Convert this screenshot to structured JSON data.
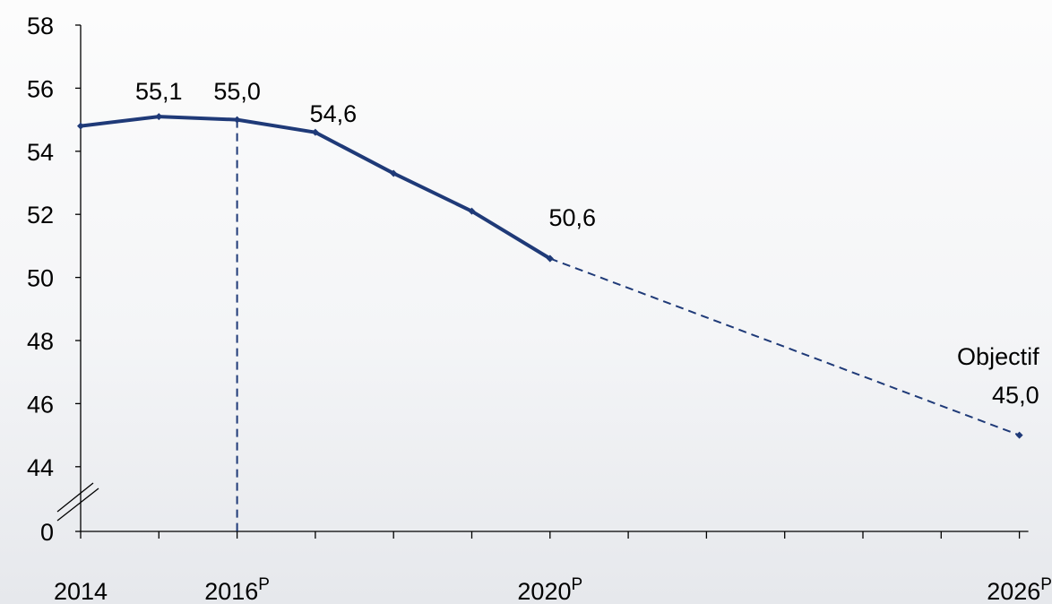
{
  "chart_data": {
    "type": "line",
    "title": "",
    "xlabel": "",
    "ylabel": "",
    "x": [
      2014,
      2015,
      2016,
      2017,
      2018,
      2019,
      2020,
      2021,
      2022,
      2023,
      2024,
      2025,
      2026
    ],
    "series": [
      {
        "style": "solid",
        "x": [
          2014,
          2015,
          2016,
          2017,
          2018,
          2019,
          2020
        ],
        "values": [
          54.8,
          55.1,
          55.0,
          54.6,
          53.3,
          52.1,
          50.6
        ]
      },
      {
        "style": "dashed",
        "x": [
          2020,
          2026
        ],
        "values": [
          50.6,
          45.0
        ]
      }
    ],
    "y_ticks": [
      "58",
      "56",
      "54",
      "52",
      "50",
      "48",
      "46",
      "44",
      "0"
    ],
    "y_axis_break": true,
    "ylim": [
      44,
      58
    ],
    "x_tick_labels": [
      {
        "x": 2014,
        "text": "2014",
        "sup": ""
      },
      {
        "x": 2016,
        "text": "2016",
        "sup": "P"
      },
      {
        "x": 2020,
        "text": "2020",
        "sup": "P"
      },
      {
        "x": 2026,
        "text": "2026",
        "sup": "P"
      }
    ],
    "data_labels": [
      {
        "x": 2015,
        "y": 55.1,
        "text": "55,1"
      },
      {
        "x": 2016,
        "y": 55.0,
        "text": "55,0"
      },
      {
        "x": 2017,
        "y": 54.6,
        "text": "54,6"
      },
      {
        "x": 2020,
        "y": 50.6,
        "text": "50,6"
      },
      {
        "x": 2026,
        "y": 45.0,
        "text": "45,0",
        "title": "Objectif"
      }
    ],
    "vertical_marker": {
      "x": 2016,
      "style": "dashed"
    },
    "colors": {
      "line": "#1f3a78",
      "axis": "#000000",
      "text": "#000000"
    },
    "grid": false,
    "legend": "none"
  }
}
